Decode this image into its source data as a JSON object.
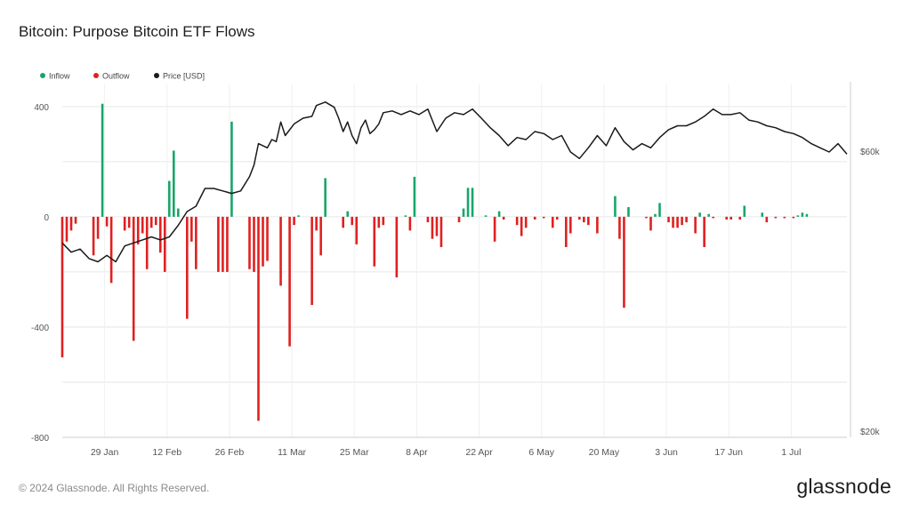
{
  "title": "Bitcoin: Purpose Bitcoin ETF Flows",
  "footer": "© 2024 Glassnode. All Rights Reserved.",
  "brand": "glassnode",
  "colors": {
    "inflow": "#18a66a",
    "outflow": "#e02020",
    "price": "#1a1a1a",
    "grid": "#e6e6e6",
    "axis_text": "#555555"
  },
  "chart_data": {
    "type": "bar",
    "grid": true,
    "legend_position": "top-left",
    "legend": [
      {
        "key": "inflow",
        "label": "Inflow"
      },
      {
        "key": "outflow",
        "label": "Outflow"
      },
      {
        "key": "price",
        "label": "Price [USD]"
      }
    ],
    "x_tick_labels": [
      "29 Jan",
      "12 Feb",
      "26 Feb",
      "11 Mar",
      "25 Mar",
      "8 Apr",
      "22 Apr",
      "6 May",
      "20 May",
      "3 Jun",
      "17 Jun",
      "1 Jul"
    ],
    "y_left": {
      "ticks": [
        400,
        0,
        -400,
        -800
      ],
      "tick_labels": [
        "400",
        "0",
        "-400",
        "-800"
      ],
      "range": [
        -800,
        480
      ]
    },
    "y_right": {
      "scale": "log",
      "tick_labels": [
        "$60k",
        "$20k"
      ],
      "tick_values": [
        60000,
        20000
      ]
    },
    "x_range_days": [
      0,
      176
    ],
    "flows": [
      {
        "day": 0,
        "value": -510
      },
      {
        "day": 1,
        "value": -90
      },
      {
        "day": 2,
        "value": -50
      },
      {
        "day": 3,
        "value": -25
      },
      {
        "day": 7,
        "value": -140
      },
      {
        "day": 8,
        "value": -80
      },
      {
        "day": 9,
        "value": 410
      },
      {
        "day": 10,
        "value": -35
      },
      {
        "day": 11,
        "value": -240
      },
      {
        "day": 14,
        "value": -50
      },
      {
        "day": 15,
        "value": -40
      },
      {
        "day": 16,
        "value": -450
      },
      {
        "day": 17,
        "value": -100
      },
      {
        "day": 18,
        "value": -60
      },
      {
        "day": 19,
        "value": -190
      },
      {
        "day": 20,
        "value": -40
      },
      {
        "day": 21,
        "value": -30
      },
      {
        "day": 22,
        "value": -130
      },
      {
        "day": 23,
        "value": -200
      },
      {
        "day": 24,
        "value": 130
      },
      {
        "day": 25,
        "value": 240
      },
      {
        "day": 26,
        "value": 30
      },
      {
        "day": 28,
        "value": -370
      },
      {
        "day": 29,
        "value": -90
      },
      {
        "day": 30,
        "value": -190
      },
      {
        "day": 35,
        "value": -200
      },
      {
        "day": 36,
        "value": -200
      },
      {
        "day": 37,
        "value": -200
      },
      {
        "day": 38,
        "value": 345
      },
      {
        "day": 42,
        "value": -190
      },
      {
        "day": 43,
        "value": -200
      },
      {
        "day": 44,
        "value": -740
      },
      {
        "day": 45,
        "value": -180
      },
      {
        "day": 46,
        "value": -160
      },
      {
        "day": 49,
        "value": -250
      },
      {
        "day": 51,
        "value": -470
      },
      {
        "day": 52,
        "value": -30
      },
      {
        "day": 53,
        "value": 5
      },
      {
        "day": 56,
        "value": -320
      },
      {
        "day": 57,
        "value": -50
      },
      {
        "day": 58,
        "value": -140
      },
      {
        "day": 59,
        "value": 140
      },
      {
        "day": 63,
        "value": -40
      },
      {
        "day": 64,
        "value": 20
      },
      {
        "day": 65,
        "value": -30
      },
      {
        "day": 66,
        "value": -100
      },
      {
        "day": 70,
        "value": -180
      },
      {
        "day": 71,
        "value": -40
      },
      {
        "day": 72,
        "value": -30
      },
      {
        "day": 75,
        "value": -220
      },
      {
        "day": 77,
        "value": 5
      },
      {
        "day": 78,
        "value": -50
      },
      {
        "day": 79,
        "value": 145
      },
      {
        "day": 82,
        "value": -20
      },
      {
        "day": 83,
        "value": -80
      },
      {
        "day": 84,
        "value": -70
      },
      {
        "day": 85,
        "value": -110
      },
      {
        "day": 89,
        "value": -20
      },
      {
        "day": 90,
        "value": 30
      },
      {
        "day": 91,
        "value": 105
      },
      {
        "day": 92,
        "value": 105
      },
      {
        "day": 95,
        "value": 5
      },
      {
        "day": 97,
        "value": -90
      },
      {
        "day": 98,
        "value": 20
      },
      {
        "day": 99,
        "value": -10
      },
      {
        "day": 102,
        "value": -30
      },
      {
        "day": 103,
        "value": -70
      },
      {
        "day": 104,
        "value": -40
      },
      {
        "day": 106,
        "value": -10
      },
      {
        "day": 108,
        "value": -5
      },
      {
        "day": 110,
        "value": -40
      },
      {
        "day": 111,
        "value": -10
      },
      {
        "day": 113,
        "value": -110
      },
      {
        "day": 114,
        "value": -60
      },
      {
        "day": 116,
        "value": -10
      },
      {
        "day": 117,
        "value": -20
      },
      {
        "day": 118,
        "value": -30
      },
      {
        "day": 120,
        "value": -60
      },
      {
        "day": 124,
        "value": 75
      },
      {
        "day": 125,
        "value": -80
      },
      {
        "day": 126,
        "value": -330
      },
      {
        "day": 127,
        "value": 35
      },
      {
        "day": 131,
        "value": -5
      },
      {
        "day": 132,
        "value": -50
      },
      {
        "day": 133,
        "value": 10
      },
      {
        "day": 134,
        "value": 50
      },
      {
        "day": 136,
        "value": -20
      },
      {
        "day": 137,
        "value": -40
      },
      {
        "day": 138,
        "value": -40
      },
      {
        "day": 139,
        "value": -30
      },
      {
        "day": 140,
        "value": -20
      },
      {
        "day": 142,
        "value": -60
      },
      {
        "day": 143,
        "value": 15
      },
      {
        "day": 144,
        "value": -110
      },
      {
        "day": 145,
        "value": 10
      },
      {
        "day": 146,
        "value": -5
      },
      {
        "day": 149,
        "value": -10
      },
      {
        "day": 150,
        "value": -10
      },
      {
        "day": 152,
        "value": -10
      },
      {
        "day": 153,
        "value": 40
      },
      {
        "day": 157,
        "value": 15
      },
      {
        "day": 158,
        "value": -20
      },
      {
        "day": 160,
        "value": -5
      },
      {
        "day": 162,
        "value": -5
      },
      {
        "day": 164,
        "value": -5
      },
      {
        "day": 165,
        "value": 5
      },
      {
        "day": 166,
        "value": 15
      },
      {
        "day": 167,
        "value": 10
      }
    ],
    "price": [
      {
        "day": 0,
        "value": 42000
      },
      {
        "day": 2,
        "value": 40500
      },
      {
        "day": 4,
        "value": 41000
      },
      {
        "day": 6,
        "value": 39500
      },
      {
        "day": 8,
        "value": 39000
      },
      {
        "day": 10,
        "value": 40000
      },
      {
        "day": 12,
        "value": 39000
      },
      {
        "day": 14,
        "value": 41500
      },
      {
        "day": 16,
        "value": 42000
      },
      {
        "day": 18,
        "value": 42500
      },
      {
        "day": 20,
        "value": 43000
      },
      {
        "day": 22,
        "value": 42500
      },
      {
        "day": 24,
        "value": 43000
      },
      {
        "day": 26,
        "value": 45000
      },
      {
        "day": 28,
        "value": 47500
      },
      {
        "day": 30,
        "value": 48500
      },
      {
        "day": 32,
        "value": 52000
      },
      {
        "day": 34,
        "value": 52000
      },
      {
        "day": 36,
        "value": 51500
      },
      {
        "day": 38,
        "value": 51000
      },
      {
        "day": 40,
        "value": 51500
      },
      {
        "day": 42,
        "value": 54500
      },
      {
        "day": 43,
        "value": 57000
      },
      {
        "day": 44,
        "value": 62000
      },
      {
        "day": 46,
        "value": 61000
      },
      {
        "day": 47,
        "value": 63000
      },
      {
        "day": 48,
        "value": 62500
      },
      {
        "day": 49,
        "value": 67500
      },
      {
        "day": 50,
        "value": 64000
      },
      {
        "day": 52,
        "value": 67000
      },
      {
        "day": 54,
        "value": 68500
      },
      {
        "day": 56,
        "value": 69000
      },
      {
        "day": 57,
        "value": 72000
      },
      {
        "day": 59,
        "value": 73000
      },
      {
        "day": 61,
        "value": 71500
      },
      {
        "day": 62,
        "value": 68500
      },
      {
        "day": 63,
        "value": 65000
      },
      {
        "day": 64,
        "value": 67500
      },
      {
        "day": 65,
        "value": 64000
      },
      {
        "day": 66,
        "value": 62000
      },
      {
        "day": 67,
        "value": 66000
      },
      {
        "day": 68,
        "value": 68000
      },
      {
        "day": 69,
        "value": 64500
      },
      {
        "day": 70,
        "value": 65500
      },
      {
        "day": 71,
        "value": 67000
      },
      {
        "day": 72,
        "value": 70000
      },
      {
        "day": 74,
        "value": 70500
      },
      {
        "day": 76,
        "value": 69500
      },
      {
        "day": 78,
        "value": 70500
      },
      {
        "day": 80,
        "value": 69500
      },
      {
        "day": 82,
        "value": 71000
      },
      {
        "day": 84,
        "value": 65000
      },
      {
        "day": 86,
        "value": 68500
      },
      {
        "day": 88,
        "value": 70000
      },
      {
        "day": 90,
        "value": 69500
      },
      {
        "day": 92,
        "value": 71000
      },
      {
        "day": 94,
        "value": 68500
      },
      {
        "day": 96,
        "value": 66000
      },
      {
        "day": 98,
        "value": 64000
      },
      {
        "day": 100,
        "value": 61500
      },
      {
        "day": 102,
        "value": 63500
      },
      {
        "day": 104,
        "value": 63000
      },
      {
        "day": 106,
        "value": 65000
      },
      {
        "day": 108,
        "value": 64500
      },
      {
        "day": 110,
        "value": 63000
      },
      {
        "day": 112,
        "value": 64000
      },
      {
        "day": 114,
        "value": 60000
      },
      {
        "day": 116,
        "value": 58500
      },
      {
        "day": 118,
        "value": 61000
      },
      {
        "day": 120,
        "value": 64000
      },
      {
        "day": 122,
        "value": 61500
      },
      {
        "day": 124,
        "value": 66000
      },
      {
        "day": 126,
        "value": 62500
      },
      {
        "day": 128,
        "value": 60500
      },
      {
        "day": 130,
        "value": 62000
      },
      {
        "day": 132,
        "value": 61000
      },
      {
        "day": 134,
        "value": 63500
      },
      {
        "day": 136,
        "value": 65500
      },
      {
        "day": 138,
        "value": 66500
      },
      {
        "day": 140,
        "value": 66500
      },
      {
        "day": 142,
        "value": 67500
      },
      {
        "day": 144,
        "value": 69000
      },
      {
        "day": 146,
        "value": 71000
      },
      {
        "day": 148,
        "value": 69500
      },
      {
        "day": 150,
        "value": 69500
      },
      {
        "day": 152,
        "value": 70000
      },
      {
        "day": 154,
        "value": 68000
      },
      {
        "day": 156,
        "value": 67500
      },
      {
        "day": 158,
        "value": 66500
      },
      {
        "day": 160,
        "value": 66000
      },
      {
        "day": 162,
        "value": 65000
      },
      {
        "day": 164,
        "value": 64500
      },
      {
        "day": 166,
        "value": 63500
      },
      {
        "day": 168,
        "value": 62000
      },
      {
        "day": 170,
        "value": 61000
      },
      {
        "day": 172,
        "value": 60000
      },
      {
        "day": 174,
        "value": 62000
      },
      {
        "day": 176,
        "value": 59500
      }
    ]
  }
}
